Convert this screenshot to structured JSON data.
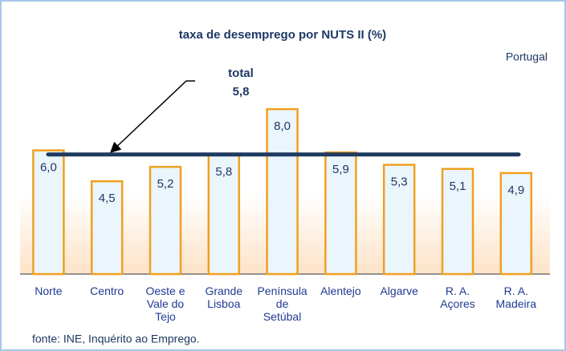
{
  "chart_data": {
    "type": "bar",
    "title": "taxa de desemprego por NUTS II  (%)",
    "subtitle": "Portugal",
    "source": "fonte: INE, Inquérito ao Emprego.",
    "categories": [
      "Norte",
      "Centro",
      "Oeste e Vale do Tejo",
      "Grande Lisboa",
      "Península de Setúbal",
      "Alentejo",
      "Algarve",
      "R. A. Açores",
      "R. A. Madeira"
    ],
    "values": [
      6.0,
      4.5,
      5.2,
      5.8,
      8.0,
      5.9,
      5.3,
      5.1,
      4.9
    ],
    "value_labels": [
      "6,0",
      "4,5",
      "5,2",
      "5,8",
      "8,0",
      "5,9",
      "5,3",
      "5,1",
      "4,9"
    ],
    "color": "#f0a020",
    "ylim": [
      0,
      11
    ],
    "total": {
      "label": "total",
      "value": 5.8,
      "value_label": "5,8",
      "color": "#1f3a60"
    }
  }
}
